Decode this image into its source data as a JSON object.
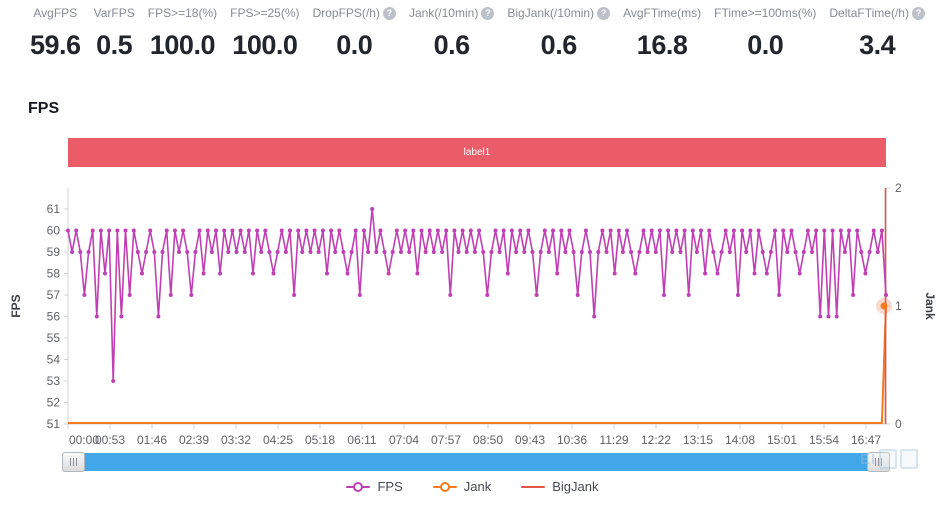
{
  "metrics": [
    {
      "label": "AvgFPS",
      "value": "59.6",
      "help": false
    },
    {
      "label": "VarFPS",
      "value": "0.5",
      "help": false
    },
    {
      "label": "FPS>=18(%)",
      "value": "100.0",
      "help": false
    },
    {
      "label": "FPS>=25(%)",
      "value": "100.0",
      "help": false
    },
    {
      "label": "DropFPS(/h)",
      "value": "0.0",
      "help": true
    },
    {
      "label": "Jank(/10min)",
      "value": "0.6",
      "help": true
    },
    {
      "label": "BigJank(/10min)",
      "value": "0.6",
      "help": true
    },
    {
      "label": "AvgFTime(ms)",
      "value": "16.8",
      "help": false
    },
    {
      "label": "FTime>=100ms(%)",
      "value": "0.0",
      "help": false
    },
    {
      "label": "DeltaFTime(/h)",
      "value": "3.4",
      "help": true
    }
  ],
  "help_glyph": "?",
  "section_title": "FPS",
  "label_bar": {
    "text": "label1",
    "color": "#e95c68"
  },
  "chart_data": {
    "type": "line",
    "x_labels": [
      "00:00",
      "00:53",
      "01:46",
      "02:39",
      "03:32",
      "04:25",
      "05:18",
      "06:11",
      "07:04",
      "07:57",
      "08:50",
      "09:43",
      "10:36",
      "11:29",
      "12:22",
      "13:15",
      "14:08",
      "15:01",
      "15:54",
      "16:47"
    ],
    "left_axis": {
      "label": "FPS",
      "min": 51,
      "max": 62,
      "ticks": [
        51,
        52,
        53,
        54,
        55,
        56,
        57,
        58,
        59,
        60,
        61
      ]
    },
    "right_axis": {
      "label": "Jank",
      "min": 0,
      "max": 2,
      "ticks": [
        0,
        1,
        2
      ]
    },
    "grid": false,
    "legend_position": "bottom",
    "series": [
      {
        "name": "FPS",
        "color": "#c03fb4",
        "yaxis": "left",
        "values": [
          60,
          59,
          60,
          59,
          57,
          59,
          60,
          56,
          60,
          58,
          60,
          53,
          60,
          56,
          60,
          57,
          60,
          59,
          58,
          59,
          60,
          59,
          56,
          59,
          60,
          57,
          60,
          59,
          60,
          59,
          57,
          59,
          60,
          58,
          60,
          59,
          60,
          58,
          60,
          59,
          60,
          59,
          60,
          59,
          60,
          58,
          60,
          59,
          60,
          59,
          58,
          59,
          60,
          59,
          60,
          57,
          60,
          59,
          60,
          59,
          60,
          59,
          60,
          58,
          60,
          59,
          60,
          59,
          58,
          59,
          60,
          57,
          60,
          59,
          61,
          59,
          60,
          59,
          58,
          59,
          60,
          59,
          60,
          59,
          60,
          58,
          60,
          59,
          60,
          59,
          60,
          59,
          60,
          57,
          60,
          59,
          60,
          59,
          60,
          59,
          60,
          59,
          57,
          59,
          60,
          59,
          60,
          58,
          60,
          59,
          60,
          59,
          60,
          59,
          57,
          59,
          60,
          59,
          60,
          58,
          60,
          59,
          60,
          59,
          57,
          59,
          60,
          59,
          56,
          59,
          60,
          59,
          60,
          58,
          60,
          59,
          60,
          59,
          58,
          59,
          60,
          59,
          60,
          59,
          60,
          57,
          60,
          59,
          60,
          59,
          60,
          57,
          60,
          59,
          60,
          58,
          60,
          59,
          58,
          59,
          60,
          59,
          60,
          57,
          60,
          59,
          60,
          58,
          60,
          59,
          58,
          59,
          60,
          57,
          60,
          59,
          60,
          59,
          58,
          59,
          60,
          59,
          60,
          56,
          60,
          56,
          60,
          56,
          60,
          59,
          60,
          57,
          60,
          59,
          58,
          59,
          60,
          59,
          60,
          57
        ]
      },
      {
        "name": "Jank",
        "color": "#f57b1d",
        "yaxis": "right",
        "points": [
          [
            0,
            0
          ],
          [
            198,
            0
          ],
          [
            199,
            1
          ]
        ],
        "emphasis_point": [
          199,
          1
        ]
      },
      {
        "name": "BigJank",
        "color": "#e15549",
        "yaxis": "right",
        "points": [
          [
            199,
            0
          ],
          [
            199,
            2
          ]
        ]
      }
    ]
  },
  "legend": [
    {
      "label": "FPS",
      "color": "#c03fb4",
      "marker": "line-circle"
    },
    {
      "label": "Jank",
      "color": "#f57b1d",
      "marker": "line-circle"
    },
    {
      "label": "BigJank",
      "color": "#e15549",
      "marker": "line"
    }
  ],
  "watermark": {
    "text": "EI"
  }
}
